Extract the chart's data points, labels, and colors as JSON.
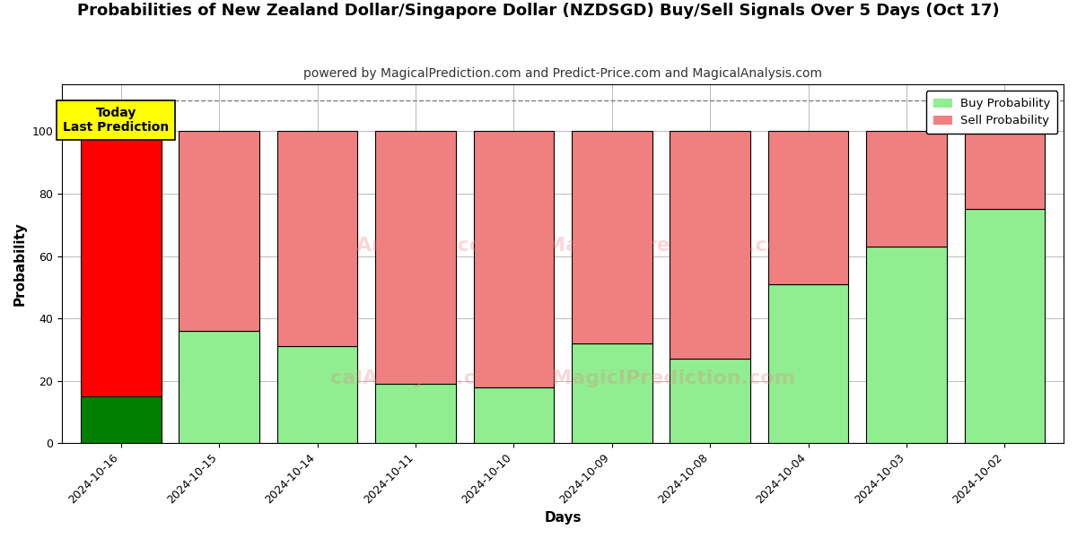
{
  "title": "Probabilities of New Zealand Dollar/Singapore Dollar (NZDSGD) Buy/Sell Signals Over 5 Days (Oct 17)",
  "subtitle": "powered by MagicalPrediction.com and Predict-Price.com and MagicalAnalysis.com",
  "xlabel": "Days",
  "ylabel": "Probability",
  "categories": [
    "2024-10-16",
    "2024-10-15",
    "2024-10-14",
    "2024-10-11",
    "2024-10-10",
    "2024-10-09",
    "2024-10-08",
    "2024-10-04",
    "2024-10-03",
    "2024-10-02"
  ],
  "buy_values": [
    15,
    36,
    31,
    19,
    18,
    32,
    27,
    51,
    63,
    75
  ],
  "sell_values": [
    85,
    64,
    69,
    81,
    82,
    68,
    73,
    49,
    37,
    25
  ],
  "today_bar_buy_color": "#008000",
  "today_bar_sell_color": "#FF0000",
  "other_bar_buy_color": "#90EE90",
  "other_bar_sell_color": "#F08080",
  "bar_edge_color": "#000000",
  "today_label_bg": "#FFFF00",
  "today_label_text": "Today\nLast Prediction",
  "dashed_line_y": 110,
  "ylim": [
    0,
    115
  ],
  "yticks": [
    0,
    20,
    40,
    60,
    80,
    100
  ],
  "legend_buy_label": "Buy Probability",
  "legend_sell_label": "Sell Probability",
  "watermark_line1": "MagicalAnalysis.com",
  "watermark_line2": "MagicalPrediction.com",
  "watermark_full": "calAnalysis.com      MagicalPrediction.com",
  "background_color": "#ffffff",
  "grid_color": "#bbbbbb",
  "title_fontsize": 13,
  "subtitle_fontsize": 10,
  "axis_label_fontsize": 11,
  "tick_fontsize": 9
}
